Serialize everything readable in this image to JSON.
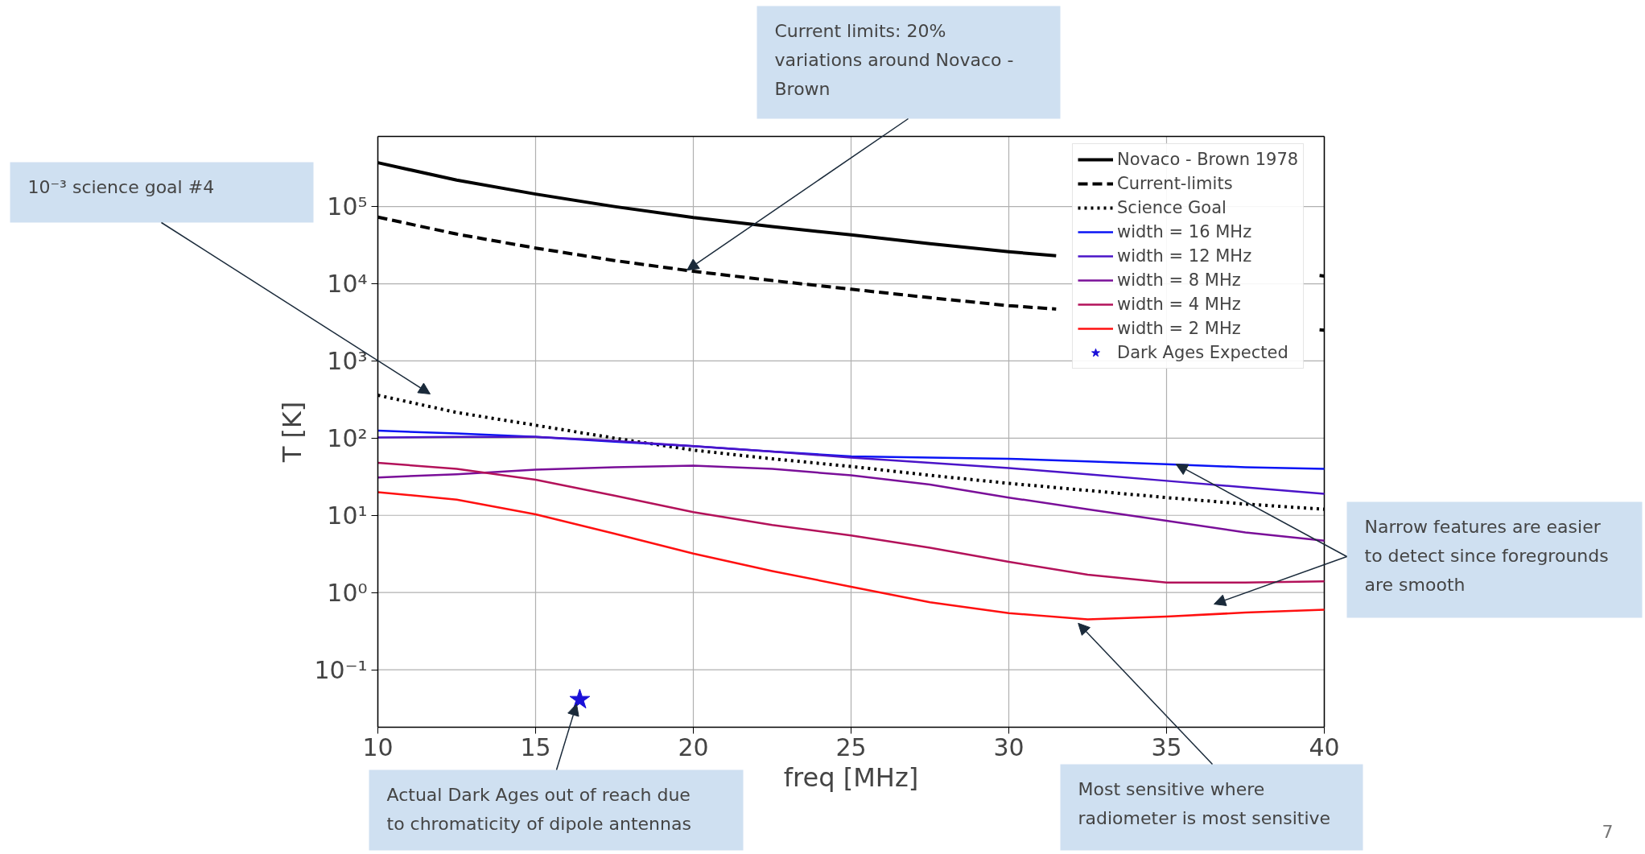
{
  "chart_data": {
    "type": "line",
    "xlabel": "freq [MHz]",
    "ylabel": "T [K]",
    "log": "y",
    "grid": true,
    "legend": "top right",
    "xlim": [
      10,
      40
    ],
    "xticks": [
      10,
      15,
      20,
      25,
      30,
      35,
      40
    ],
    "ylim": [
      0.018,
      810000
    ],
    "yticks": [
      {
        "value": 0.1,
        "label": "10⁻¹"
      },
      {
        "value": 1,
        "label": "10⁰"
      },
      {
        "value": 10,
        "label": "10¹"
      },
      {
        "value": 100,
        "label": "10²"
      },
      {
        "value": 1000,
        "label": "10³"
      },
      {
        "value": 10000,
        "label": "10⁴"
      },
      {
        "value": 100000,
        "label": "10⁵"
      }
    ],
    "series": [
      {
        "name": "Novaco - Brown 1978",
        "color": "#000000",
        "line_style": "solid",
        "x": [
          10,
          12.5,
          15,
          17.5,
          20,
          22.5,
          25,
          27.5,
          30,
          31.5,
          35,
          39.85,
          40
        ],
        "values": [
          370000,
          220000,
          145000,
          100000,
          72000,
          55000,
          43000,
          33000,
          26000,
          23000,
          null,
          12800,
          12600
        ]
      },
      {
        "name": "Current-limits",
        "color": "#000000",
        "line_style": "dashed",
        "x": [
          10,
          12.5,
          15,
          17.5,
          20,
          22.5,
          25,
          27.5,
          30,
          31.5,
          35,
          39.85,
          40
        ],
        "values": [
          73000,
          44000,
          29000,
          20000,
          14500,
          11000,
          8500,
          6600,
          5200,
          4700,
          null,
          2530,
          2500
        ]
      },
      {
        "name": "Science Goal",
        "color": "#000000",
        "line_style": "dotted",
        "x": [
          10,
          12.5,
          15,
          17.5,
          20,
          22.5,
          25,
          27.5,
          30,
          32.5,
          35,
          37.5,
          40
        ],
        "values": [
          360,
          215,
          147,
          100,
          70,
          54,
          43,
          33,
          26,
          21,
          17,
          14,
          12
        ]
      },
      {
        "name": "width = 16 MHz",
        "color": "#0a14f5",
        "x": [
          10,
          12.5,
          15,
          17.5,
          20,
          22.5,
          25,
          27.5,
          30,
          32.5,
          35,
          37.5,
          40
        ],
        "values": [
          125,
          115,
          104,
          90,
          79,
          67,
          58,
          56,
          54,
          50,
          46,
          42,
          40
        ]
      },
      {
        "name": "width = 12 MHz",
        "color": "#4b14c8",
        "x": [
          10,
          12.5,
          15,
          17.5,
          20,
          22.5,
          25,
          27.5,
          30,
          32.5,
          35,
          37.5,
          40
        ],
        "values": [
          102,
          104,
          104,
          92,
          79,
          67,
          56,
          48,
          41,
          34,
          28,
          23,
          19
        ]
      },
      {
        "name": "width = 8 MHz",
        "color": "#7a0f99",
        "x": [
          10,
          12.5,
          15,
          17.5,
          20,
          22.5,
          25,
          27.5,
          30,
          32.5,
          35,
          37.5,
          40
        ],
        "values": [
          31,
          34,
          39,
          42,
          44,
          40,
          33,
          25,
          17,
          12,
          8.5,
          6,
          4.7
        ]
      },
      {
        "name": "width = 4 MHz",
        "color": "#b3125a",
        "x": [
          10,
          12.5,
          15,
          17.5,
          20,
          22.5,
          25,
          27.5,
          30,
          32.5,
          35,
          37.5,
          40
        ],
        "values": [
          48,
          40,
          29,
          18,
          11,
          7.5,
          5.5,
          3.8,
          2.5,
          1.7,
          1.35,
          1.35,
          1.4
        ]
      },
      {
        "name": "width = 2 MHz",
        "color": "#ff1010",
        "x": [
          10,
          12.5,
          15,
          17.5,
          20,
          22.5,
          25,
          27.5,
          30,
          32.5,
          35,
          37.5,
          40
        ],
        "values": [
          20,
          16,
          10.3,
          5.8,
          3.2,
          1.9,
          1.19,
          0.75,
          0.54,
          0.45,
          0.49,
          0.55,
          0.6
        ]
      },
      {
        "name": "Dark Ages Expected",
        "type": "scatter",
        "marker": "star",
        "color": "#1a10d8",
        "x": [
          16.4
        ],
        "values": [
          0.041
        ]
      }
    ],
    "annotations": [
      {
        "text": "Current limits: 20%\nvariations around Novaco -\nBrown",
        "x": 19.8,
        "y": 15000
      },
      "10⁻³ science goal #4",
      {
        "text": "Narrow features are easier\nto detect since foregrounds\nare smooth",
        "x": 35.3,
        "y": 46
      },
      {
        "text": "Actual Dark Ages out of reach due\nto chromaticity of dipole antennas",
        "x": 16.3,
        "y": 0.036
      },
      {
        "text": "Most sensitive where\nradiometer is most sensitive",
        "x": 32.2,
        "y": 0.4
      },
      "7"
    ]
  }
}
